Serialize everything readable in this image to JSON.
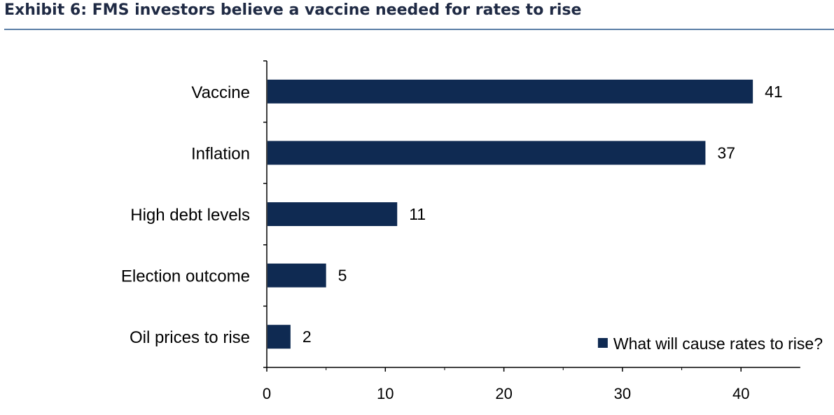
{
  "title": "Exhibit 6: FMS investors believe a vaccine needed for rates to rise",
  "colors": {
    "bar": "#0f2a52",
    "title": "#1f2a44",
    "rule": "#5b7fa6",
    "axis": "#000000"
  },
  "chart_data": {
    "type": "bar",
    "orientation": "horizontal",
    "title": "",
    "xlabel": "",
    "ylabel": "",
    "categories": [
      "Vaccine",
      "Inflation",
      "High debt levels",
      "Election outcome",
      "Oil prices to rise"
    ],
    "series": [
      {
        "name": "What will cause rates to rise?",
        "values": [
          41,
          37,
          11,
          5,
          2
        ],
        "data_labels": [
          "41",
          "37",
          "11",
          "5",
          "2"
        ]
      }
    ],
    "xlim": [
      0,
      45
    ],
    "xticks": [
      0,
      10,
      20,
      30,
      40
    ],
    "xtick_labels": [
      "0",
      "10",
      "20",
      "30",
      "40"
    ],
    "grid": false,
    "legend": "bottom-right"
  }
}
